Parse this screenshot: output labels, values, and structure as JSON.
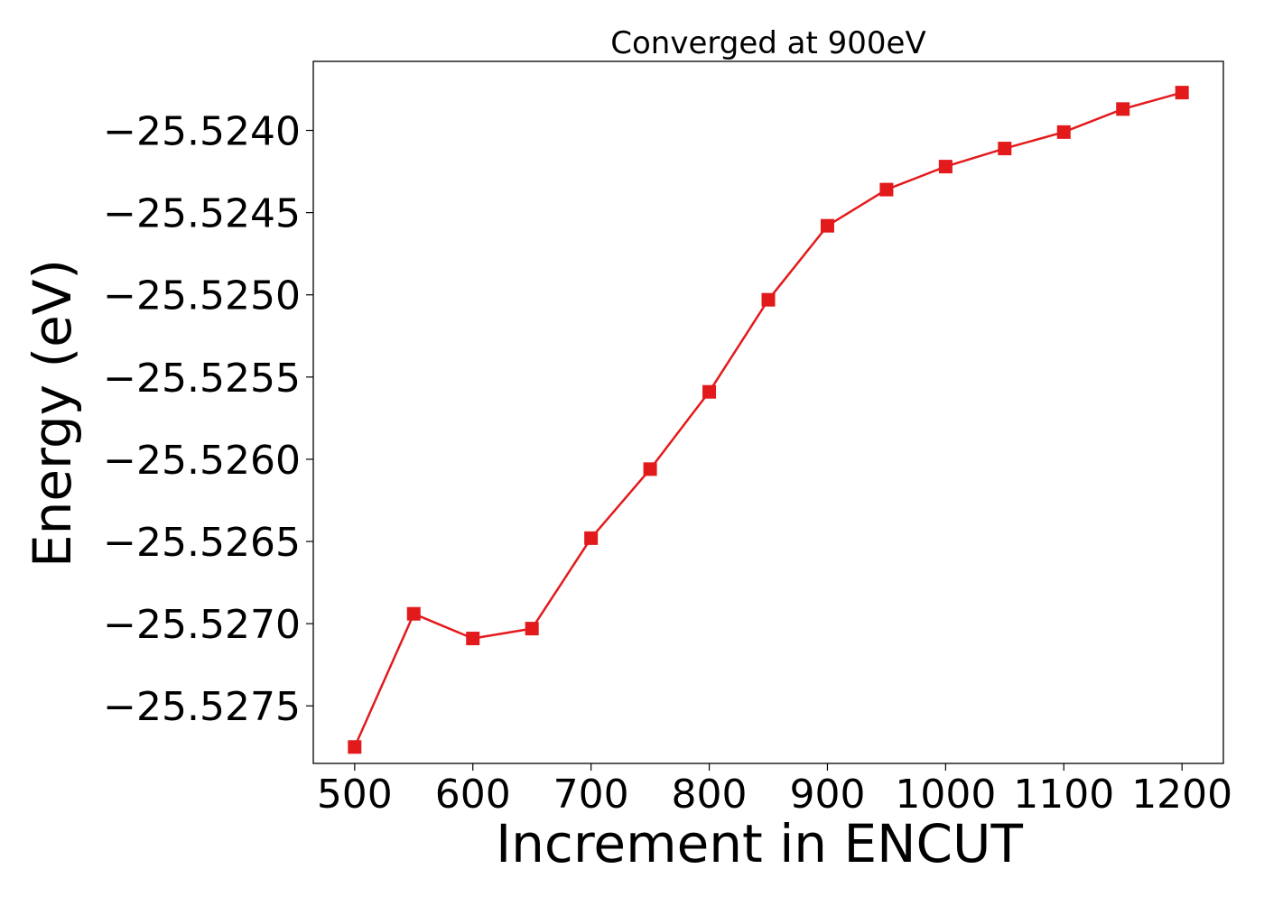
{
  "chart_data": {
    "type": "line",
    "title": "Converged at 900eV",
    "xlabel": "Increment in ENCUT",
    "ylabel": "Energy (eV)",
    "xlim": [
      465,
      1235
    ],
    "ylim": [
      -25.52785,
      -25.52358
    ],
    "x_ticks": [
      500,
      600,
      700,
      800,
      900,
      1000,
      1100,
      1200
    ],
    "y_ticks": [
      -25.524,
      -25.5245,
      -25.525,
      -25.5255,
      -25.526,
      -25.5265,
      -25.527,
      -25.5275
    ],
    "x_tick_labels": [
      "500",
      "600",
      "700",
      "800",
      "900",
      "1000",
      "1100",
      "1200"
    ],
    "y_tick_labels": [
      "−25.5240",
      "−25.5245",
      "−25.5250",
      "−25.5255",
      "−25.5260",
      "−25.5265",
      "−25.5270",
      "−25.5275"
    ],
    "grid": false,
    "legend": "none",
    "series": [
      {
        "color": "#e31a1c",
        "marker": "square",
        "x": [
          500,
          550,
          600,
          650,
          700,
          750,
          800,
          850,
          900,
          950,
          1000,
          1050,
          1100,
          1150,
          1200
        ],
        "y": [
          -25.52775,
          -25.52694,
          -25.52709,
          -25.52703,
          -25.52648,
          -25.52606,
          -25.52559,
          -25.52503,
          -25.52458,
          -25.52436,
          -25.52422,
          -25.52411,
          -25.52401,
          -25.52387,
          -25.52377
        ]
      }
    ]
  }
}
